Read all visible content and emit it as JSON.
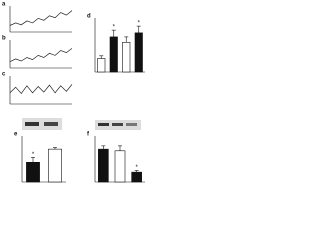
{
  "chart_data": [
    {
      "type": "line",
      "panel": "a",
      "x": [
        0,
        1,
        2,
        3,
        4,
        5,
        6,
        7,
        8,
        9,
        10,
        11
      ],
      "xlim": [
        0,
        11
      ],
      "ylim": [
        0,
        4
      ],
      "color": "#222",
      "values": [
        1.0,
        1.4,
        1.1,
        1.7,
        1.4,
        2.1,
        1.8,
        2.5,
        2.2,
        3.0,
        2.6,
        3.3
      ]
    },
    {
      "type": "line",
      "panel": "b",
      "x": [
        0,
        1,
        2,
        3,
        4,
        5,
        6,
        7,
        8,
        9,
        10,
        11
      ],
      "xlim": [
        0,
        11
      ],
      "ylim": [
        0,
        4
      ],
      "color": "#222",
      "values": [
        0.9,
        1.3,
        1.0,
        1.5,
        1.2,
        1.8,
        1.5,
        2.1,
        1.8,
        2.5,
        2.2,
        2.8
      ]
    },
    {
      "type": "line",
      "panel": "c",
      "x": [
        0,
        1,
        2,
        3,
        4,
        5,
        6,
        7,
        8,
        9,
        10,
        11
      ],
      "xlim": [
        0,
        11
      ],
      "ylim": [
        0,
        4
      ],
      "color": "#222",
      "values": [
        1.6,
        2.4,
        1.5,
        2.6,
        1.6,
        2.5,
        1.7,
        2.7,
        1.6,
        2.6,
        1.8,
        2.8
      ]
    },
    {
      "type": "bar",
      "panel": "d",
      "categories": [
        null,
        null,
        null,
        null
      ],
      "ylim": [
        0,
        4
      ],
      "values": [
        1.0,
        2.6,
        2.2,
        2.9
      ],
      "errors": [
        0.2,
        0.5,
        0.4,
        0.5
      ],
      "colors": [
        "#ffffff",
        "#111111",
        "#ffffff",
        "#111111"
      ],
      "asterisks": [
        null,
        "*",
        null,
        "*"
      ]
    },
    {
      "type": "bar",
      "panel": "e",
      "categories": [
        null,
        null
      ],
      "ylim": [
        0,
        1.4
      ],
      "values": [
        0.6,
        1.0
      ],
      "errors": [
        0.15,
        0.05
      ],
      "colors": [
        "#111111",
        "#ffffff"
      ],
      "asterisks": [
        "*",
        null
      ]
    },
    {
      "type": "bar",
      "panel": "f",
      "categories": [
        null,
        null,
        null
      ],
      "ylim": [
        0,
        1.4
      ],
      "values": [
        1.0,
        0.95,
        0.3
      ],
      "errors": [
        0.1,
        0.15,
        0.05
      ],
      "colors": [
        "#111111",
        "#ffffff",
        "#111111"
      ],
      "asterisks": [
        null,
        null,
        "*"
      ]
    }
  ]
}
